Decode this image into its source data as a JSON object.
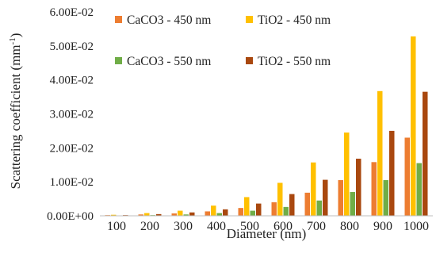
{
  "chart_data": {
    "type": "bar",
    "xlabel": "Diameter (nm)",
    "ylabel_main": "Scattering coefficient (mm",
    "ylabel_sup": "-1",
    "ylabel_close": ")",
    "ylim": [
      0,
      0.06
    ],
    "yticks": [
      {
        "value": 0.0,
        "label": "0.00E+00"
      },
      {
        "value": 0.01,
        "label": "1.00E-02"
      },
      {
        "value": 0.02,
        "label": "2.00E-02"
      },
      {
        "value": 0.03,
        "label": "3.00E-02"
      },
      {
        "value": 0.04,
        "label": "4.00E-02"
      },
      {
        "value": 0.05,
        "label": "5.00E-02"
      },
      {
        "value": 0.06,
        "label": "6.00E-02"
      }
    ],
    "grid": false,
    "legend_placement": "top",
    "categories": [
      "100",
      "200",
      "300",
      "400",
      "500",
      "600",
      "700",
      "800",
      "900",
      "1000"
    ],
    "series": [
      {
        "name": "CaCO3 - 450 nm",
        "color": "#ED7D31",
        "values": [
          0.0002,
          0.0004,
          0.0007,
          0.0013,
          0.0023,
          0.004,
          0.0068,
          0.0105,
          0.0158,
          0.023
        ]
      },
      {
        "name": "TiO2 - 450 nm",
        "color": "#FFC000",
        "values": [
          0.0003,
          0.0008,
          0.0015,
          0.003,
          0.0055,
          0.0097,
          0.0157,
          0.0245,
          0.0367,
          0.0528
        ]
      },
      {
        "name": "CaCO3 - 550 nm",
        "color": "#70AD47",
        "values": [
          0.0001,
          0.0002,
          0.0004,
          0.0008,
          0.0015,
          0.0026,
          0.0045,
          0.007,
          0.0105,
          0.0155
        ]
      },
      {
        "name": "TiO2 - 550 nm",
        "color": "#A9480F",
        "values": [
          0.0002,
          0.0005,
          0.001,
          0.0019,
          0.0036,
          0.0064,
          0.0106,
          0.0168,
          0.025,
          0.0365
        ]
      }
    ]
  }
}
